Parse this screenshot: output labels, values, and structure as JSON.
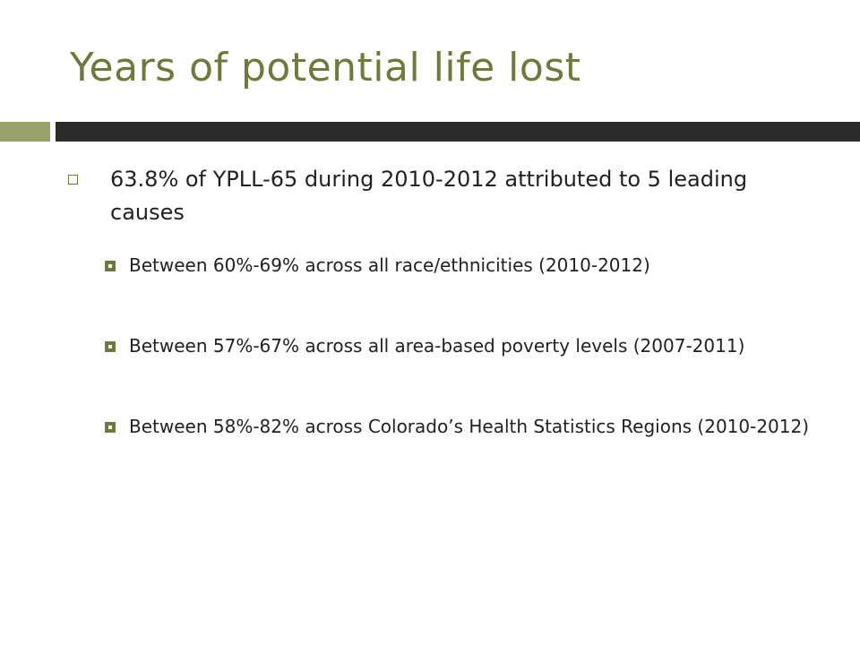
{
  "slide": {
    "title": "Years of potential life lost",
    "bullets": [
      {
        "text": "63.8% of YPLL-65 during 2010-2012 attributed to 5 leading causes",
        "sub_bullets": [
          {
            "text": "Between 60%-69% across all race/ethnicities (2010-2012)"
          },
          {
            "text": "Between 57%-67% across all area-based poverty levels (2007-2011)"
          },
          {
            "text": "Between 58%-82% across Colorado’s Health Statistics Regions (2010-2012)"
          }
        ]
      }
    ]
  },
  "colors": {
    "title": "#6f7a3a",
    "accent_bar_left": "#9aa16b",
    "accent_bar_right": "#2b2b2b",
    "body_text": "#222222"
  }
}
